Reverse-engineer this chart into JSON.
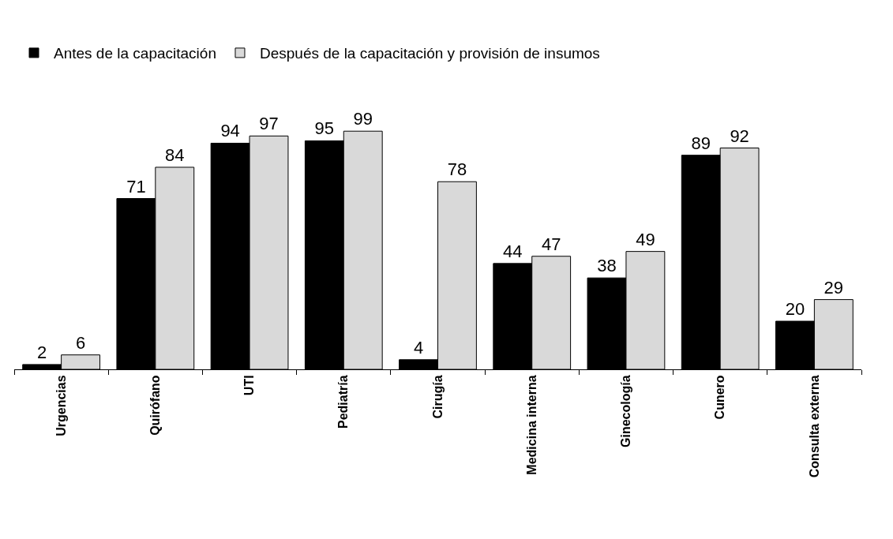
{
  "chart_data": {
    "type": "bar",
    "categories": [
      "Urgencias",
      "Quirófano",
      "UTI",
      "Pediatría",
      "Cirugía",
      "Medicina interna",
      "Ginecología",
      "Cunero",
      "Consulta externa"
    ],
    "series": [
      {
        "name": "Antes de la capacitación",
        "color": "#000000",
        "values": [
          2,
          71,
          94,
          95,
          4,
          44,
          38,
          89,
          20
        ]
      },
      {
        "name": "Después de la capacitación y provisión de insumos",
        "color": "#d9d9d9",
        "values": [
          6,
          84,
          97,
          99,
          78,
          47,
          49,
          92,
          29
        ]
      }
    ],
    "data_labels": true,
    "legend": "top left"
  }
}
